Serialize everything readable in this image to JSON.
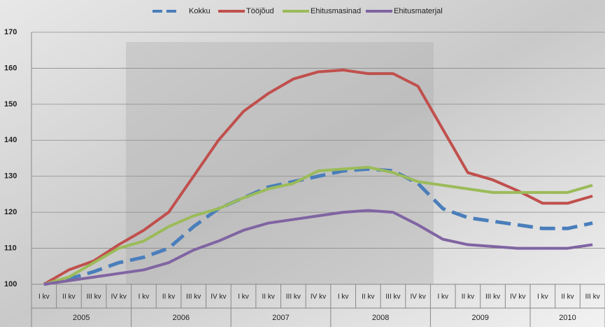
{
  "chart_data": {
    "type": "line",
    "categories": [
      "I kv",
      "II kv",
      "III kv",
      "IV kv",
      "I kv",
      "II kv",
      "III kv",
      "IV kv",
      "I kv",
      "II kv",
      "III kv",
      "IV kv",
      "I kv",
      "II kv",
      "III kv",
      "IV kv",
      "I kv",
      "II kv",
      "III kv",
      "IV kv",
      "I kv",
      "II kv",
      "III kv"
    ],
    "years": [
      "2005",
      "2006",
      "2007",
      "2008",
      "2009",
      "2010"
    ],
    "series": [
      {
        "name": "Kokku",
        "color": "#4a7ebb",
        "dashed": true,
        "values": [
          100,
          101.5,
          103.5,
          106,
          107.5,
          110,
          116,
          121,
          124,
          127,
          128.5,
          130,
          131.5,
          132,
          131.5,
          128,
          121,
          118.5,
          117.5,
          116.5,
          115.5,
          115.5,
          117
        ]
      },
      {
        "name": "Tööjõud",
        "color": "#c0504d",
        "dashed": false,
        "values": [
          100,
          104,
          106.5,
          111,
          115,
          120,
          130,
          140,
          148,
          153,
          157,
          159,
          159.5,
          158.5,
          158.5,
          155,
          143,
          131,
          129,
          126,
          122.5,
          122.5,
          124.5
        ]
      },
      {
        "name": "Ehitusmasinad",
        "color": "#9bbb59",
        "dashed": false,
        "values": [
          100,
          102,
          106,
          110,
          112,
          116,
          119,
          121,
          124,
          126.5,
          128,
          131.5,
          132,
          132.5,
          131,
          128.5,
          127.5,
          126.5,
          125.5,
          125.5,
          125.5,
          125.5,
          127.5
        ]
      },
      {
        "name": "Ehitusmaterjal",
        "color": "#8064a2",
        "dashed": false,
        "values": [
          100,
          101,
          102,
          103,
          104,
          106,
          109.5,
          112,
          115,
          117,
          118,
          119,
          120,
          120.5,
          120,
          116.5,
          112.5,
          111,
          110.5,
          110,
          110,
          110,
          111
        ]
      }
    ],
    "ylim": [
      100,
      170
    ],
    "yticks": [
      100,
      110,
      120,
      130,
      140,
      150,
      160,
      170
    ],
    "grid": true
  }
}
